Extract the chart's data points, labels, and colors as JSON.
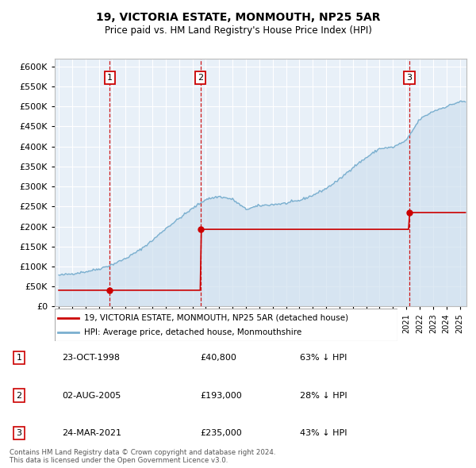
{
  "title": "19, VICTORIA ESTATE, MONMOUTH, NP25 5AR",
  "subtitle": "Price paid vs. HM Land Registry's House Price Index (HPI)",
  "legend_line1": "19, VICTORIA ESTATE, MONMOUTH, NP25 5AR (detached house)",
  "legend_line2": "HPI: Average price, detached house, Monmouthshire",
  "footer1": "Contains HM Land Registry data © Crown copyright and database right 2024.",
  "footer2": "This data is licensed under the Open Government Licence v3.0.",
  "transactions": [
    {
      "num": 1,
      "date": "23-OCT-1998",
      "price": 40800,
      "pct": "63%",
      "direction": "↓",
      "year": 1998.81
    },
    {
      "num": 2,
      "date": "02-AUG-2005",
      "price": 193000,
      "pct": "28%",
      "direction": "↓",
      "year": 2005.59
    },
    {
      "num": 3,
      "date": "24-MAR-2021",
      "price": 235000,
      "pct": "43%",
      "direction": "↓",
      "year": 2021.23
    }
  ],
  "price_color": "#cc0000",
  "hpi_color": "#7aafcf",
  "hpi_fill": "#cfe0ef",
  "background_plot": "#e8f0f8",
  "grid_color": "#ffffff",
  "vline_color": "#cc0000",
  "box_color": "#cc0000",
  "ylim": [
    0,
    620000
  ],
  "yticks": [
    0,
    50000,
    100000,
    150000,
    200000,
    250000,
    300000,
    350000,
    400000,
    450000,
    500000,
    550000,
    600000
  ],
  "xlim_start": 1994.7,
  "xlim_end": 2025.5,
  "hpi_anchors_x": [
    1995,
    1996,
    1997,
    1998,
    1999,
    2000,
    2001,
    2002,
    2003,
    2004,
    2005,
    2006,
    2007,
    2008,
    2009,
    2010,
    2011,
    2012,
    2013,
    2014,
    2015,
    2016,
    2017,
    2018,
    2019,
    2020,
    2021,
    2022,
    2023,
    2024,
    2025
  ],
  "hpi_anchors_y": [
    78000,
    82000,
    87000,
    94000,
    105000,
    120000,
    140000,
    165000,
    195000,
    220000,
    245000,
    268000,
    275000,
    268000,
    243000,
    252000,
    255000,
    258000,
    265000,
    278000,
    295000,
    318000,
    348000,
    372000,
    395000,
    398000,
    415000,
    468000,
    488000,
    500000,
    512000
  ]
}
